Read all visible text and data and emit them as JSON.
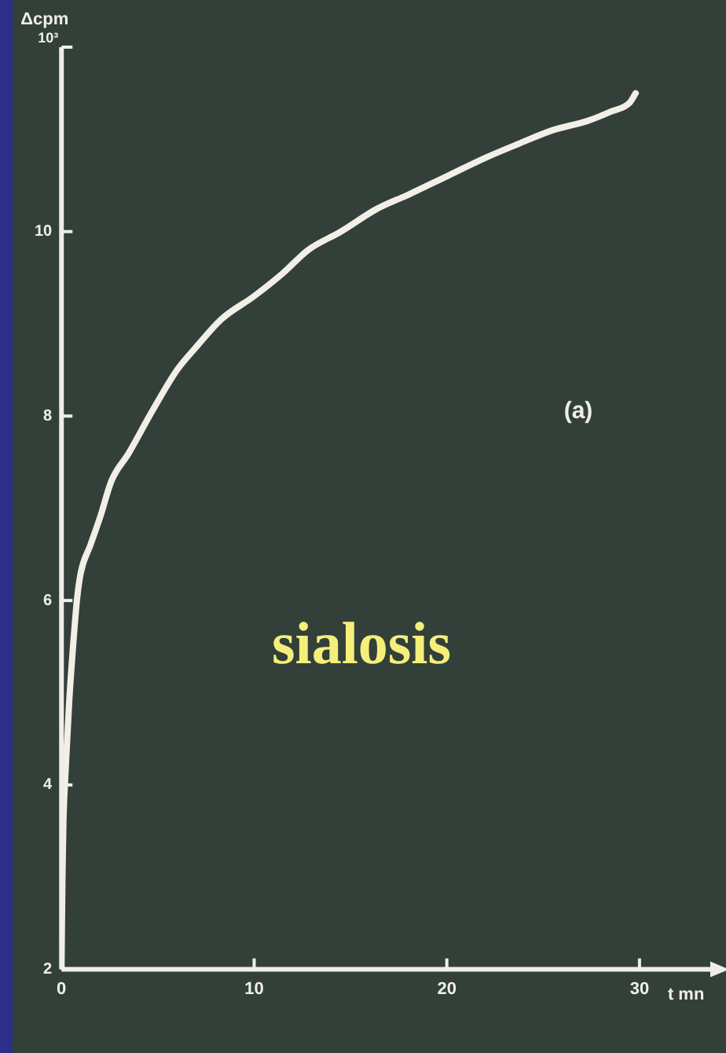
{
  "chart_data": {
    "type": "line",
    "xlabel": "t mn",
    "ylabel": "Δcpm 10³",
    "annotations": [
      "(a)",
      "sialosis"
    ],
    "x": [
      0,
      0.05,
      0.1,
      0.2,
      0.4,
      0.6,
      0.8,
      1.0,
      1.5,
      2.0,
      2.6,
      3.5,
      4.7,
      6,
      7,
      8.3,
      10,
      11.5,
      12.8,
      14.5,
      16.4,
      18,
      20,
      22,
      23.7,
      25.5,
      27.3,
      28.5,
      29.5,
      29.8
    ],
    "series": [
      {
        "color": "#f2efe6",
        "values": [
          2,
          3.0,
          3.6,
          4.1,
          4.9,
          5.5,
          6.0,
          6.3,
          6.6,
          6.9,
          7.3,
          7.6,
          8.05,
          8.5,
          8.75,
          9.05,
          9.3,
          9.55,
          9.8,
          10.0,
          10.25,
          10.4,
          10.6,
          10.8,
          10.95,
          11.1,
          11.2,
          11.3,
          11.4,
          11.5
        ]
      }
    ],
    "xlim": [
      0,
      34
    ],
    "xticks": [
      0,
      10,
      20,
      30
    ],
    "ylim": [
      2,
      12
    ],
    "yticks": [
      2,
      4,
      6,
      8,
      10,
      {
        "value": 12,
        "label": null
      }
    ],
    "grid": false,
    "legend": false,
    "marker": "none",
    "line_style": "solid"
  }
}
